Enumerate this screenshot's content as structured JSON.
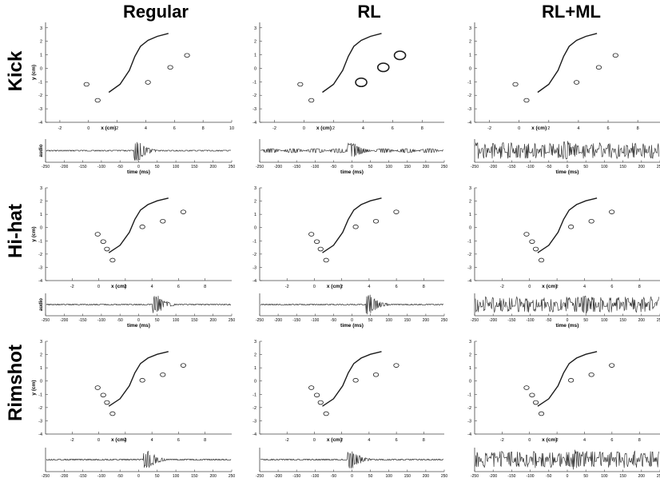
{
  "column_titles": [
    "Regular",
    "RL",
    "RL+ML"
  ],
  "row_titles": [
    "Kick",
    "Hi-hat",
    "Rimshot"
  ],
  "colors": {
    "trace": "#1a1a1a",
    "wave": "#3a3a3a",
    "axis": "#444444"
  },
  "chart_data": {
    "type": "figure-grid",
    "traj_ylabel": "y (cm)",
    "traj_xlabel": "x (cm)",
    "audio_ylabel": "audio",
    "audio_xlabel": "time (ms)",
    "traj_yticks": [
      3,
      2,
      1,
      0,
      -1,
      -2,
      -3,
      -4
    ],
    "audio_xticks": [
      -250,
      -200,
      -150,
      -100,
      -50,
      0,
      50,
      100,
      150,
      200,
      250
    ],
    "audio_xlim": [
      -250,
      250
    ],
    "panels": [
      {
        "row": "Kick",
        "col": "Regular",
        "xlim": [
          -3,
          10
        ],
        "ylim": [
          -4,
          3.4
        ],
        "xticks": [
          -2,
          0,
          2,
          4,
          6,
          8,
          10
        ],
        "noise": "none",
        "onset_ms": 0
      },
      {
        "row": "Kick",
        "col": "RL",
        "xlim": [
          -3,
          9.5
        ],
        "ylim": [
          -4,
          3.4
        ],
        "xticks": [
          -2,
          0,
          2,
          4,
          6,
          8
        ],
        "noise": "low-frequency",
        "onset_ms": 0
      },
      {
        "row": "Kick",
        "col": "RL+ML",
        "xlim": [
          -3,
          9.5
        ],
        "ylim": [
          -4,
          3.4
        ],
        "xticks": [
          -2,
          0,
          2,
          4,
          6,
          8
        ],
        "noise": "periodic",
        "onset_ms": 0
      },
      {
        "row": "Hi-hat",
        "col": "Regular",
        "xlim": [
          -4,
          10
        ],
        "ylim": [
          -4,
          3
        ],
        "xticks": [
          -2,
          0,
          2,
          4,
          6,
          8
        ],
        "noise": "none",
        "onset_ms": 50
      },
      {
        "row": "Hi-hat",
        "col": "RL",
        "xlim": [
          -4,
          9.5
        ],
        "ylim": [
          -4,
          3
        ],
        "xticks": [
          -2,
          0,
          2,
          4,
          6,
          8
        ],
        "noise": "none",
        "onset_ms": 50
      },
      {
        "row": "Hi-hat",
        "col": "RL+ML",
        "xlim": [
          -4,
          9.5
        ],
        "ylim": [
          -4,
          3
        ],
        "xticks": [
          -2,
          0,
          2,
          4,
          6,
          8
        ],
        "noise": "periodic",
        "onset_ms": 50
      },
      {
        "row": "Rimshot",
        "col": "Regular",
        "xlim": [
          -4,
          10
        ],
        "ylim": [
          -4,
          3
        ],
        "xticks": [
          -2,
          0,
          2,
          4,
          6,
          8
        ],
        "noise": "none",
        "onset_ms": 25
      },
      {
        "row": "Rimshot",
        "col": "RL",
        "xlim": [
          -4,
          9.5
        ],
        "ylim": [
          -4,
          3
        ],
        "xticks": [
          -2,
          0,
          2,
          4,
          6,
          8
        ],
        "noise": "none",
        "onset_ms": 0
      },
      {
        "row": "Rimshot",
        "col": "RL+ML",
        "xlim": [
          -4,
          9.5
        ],
        "ylim": [
          -4,
          3
        ],
        "xticks": [
          -2,
          0,
          2,
          4,
          6,
          8
        ],
        "noise": "periodic",
        "onset_ms": 25
      }
    ]
  }
}
